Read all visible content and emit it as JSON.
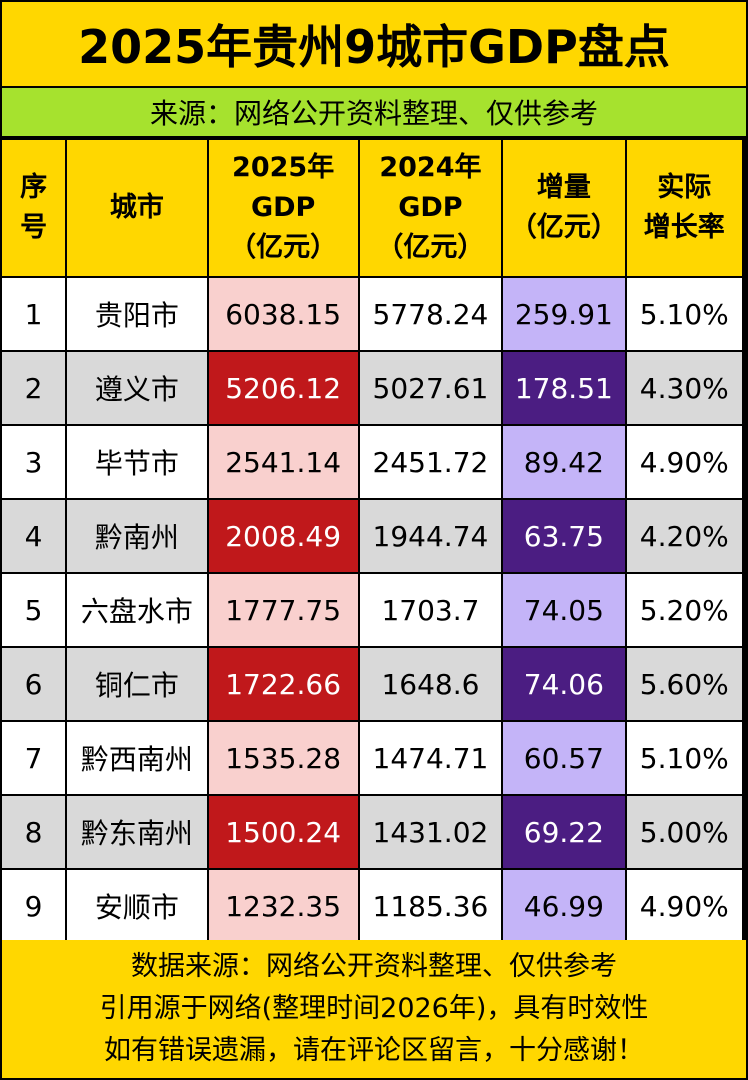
{
  "title": "2025年贵州9城市GDP盘点",
  "source_line": "来源：网络公开资料整理、仅供参考",
  "header": {
    "rank": [
      "序",
      "号"
    ],
    "city": "城市",
    "gdp2025": [
      "2025年",
      "GDP",
      "（亿元）"
    ],
    "gdp2024": [
      "2024年",
      "GDP",
      "（亿元）"
    ],
    "increase": [
      "增量",
      "（亿元）"
    ],
    "growth": [
      "实际",
      "增长率"
    ]
  },
  "rows": [
    {
      "rank": "1",
      "city": "贵阳市",
      "gdp2025": "6038.15",
      "gdp2024": "5778.24",
      "increase": "259.91",
      "growth": "5.10%"
    },
    {
      "rank": "2",
      "city": "遵义市",
      "gdp2025": "5206.12",
      "gdp2024": "5027.61",
      "increase": "178.51",
      "growth": "4.30%"
    },
    {
      "rank": "3",
      "city": "毕节市",
      "gdp2025": "2541.14",
      "gdp2024": "2451.72",
      "increase": "89.42",
      "growth": "4.90%"
    },
    {
      "rank": "4",
      "city": "黔南州",
      "gdp2025": "2008.49",
      "gdp2024": "1944.74",
      "increase": "63.75",
      "growth": "4.20%"
    },
    {
      "rank": "5",
      "city": "六盘水市",
      "gdp2025": "1777.75",
      "gdp2024": "1703.7",
      "increase": "74.05",
      "growth": "5.20%"
    },
    {
      "rank": "6",
      "city": "铜仁市",
      "gdp2025": "1722.66",
      "gdp2024": "1648.6",
      "increase": "74.06",
      "growth": "5.60%"
    },
    {
      "rank": "7",
      "city": "黔西南州",
      "gdp2025": "1535.28",
      "gdp2024": "1474.71",
      "increase": "60.57",
      "growth": "5.10%"
    },
    {
      "rank": "8",
      "city": "黔东南州",
      "gdp2025": "1500.24",
      "gdp2024": "1431.02",
      "increase": "69.22",
      "growth": "5.00%"
    },
    {
      "rank": "9",
      "city": "安顺市",
      "gdp2025": "1232.35",
      "gdp2024": "1185.36",
      "increase": "46.99",
      "growth": "4.90%"
    }
  ],
  "footer": [
    "数据来源：网络公开资料整理、仅供参考",
    "引用源于网络(整理时间2026年)，具有时效性",
    "如有错误遗漏，请在评论区留言，十分感谢！"
  ],
  "colors": {
    "title_bg": "#FFD700",
    "source_bg": "#A6E22E",
    "highlight_red": "#C0181B",
    "highlight_pink": "#F9D0CE",
    "highlight_purple_dark": "#4B1D82",
    "highlight_purple_light": "#C4B4F8"
  },
  "chart_data": {
    "type": "table",
    "title": "2025年贵州9城市GDP盘点",
    "columns": [
      "序号",
      "城市",
      "2025年GDP（亿元）",
      "2024年GDP（亿元）",
      "增量（亿元）",
      "实际增长率"
    ],
    "categories": [
      "贵阳市",
      "遵义市",
      "毕节市",
      "黔南州",
      "六盘水市",
      "铜仁市",
      "黔西南州",
      "黔东南州",
      "安顺市"
    ],
    "series": [
      {
        "name": "2025年GDP（亿元）",
        "values": [
          6038.15,
          5206.12,
          2541.14,
          2008.49,
          1777.75,
          1722.66,
          1535.28,
          1500.24,
          1232.35
        ]
      },
      {
        "name": "2024年GDP（亿元）",
        "values": [
          5778.24,
          5027.61,
          2451.72,
          1944.74,
          1703.7,
          1648.6,
          1474.71,
          1431.02,
          1185.36
        ]
      },
      {
        "name": "增量（亿元）",
        "values": [
          259.91,
          178.51,
          89.42,
          63.75,
          74.05,
          74.06,
          60.57,
          69.22,
          46.99
        ]
      },
      {
        "name": "实际增长率",
        "values": [
          5.1,
          4.3,
          4.9,
          4.2,
          5.2,
          5.6,
          5.1,
          5.0,
          4.9
        ]
      }
    ]
  }
}
